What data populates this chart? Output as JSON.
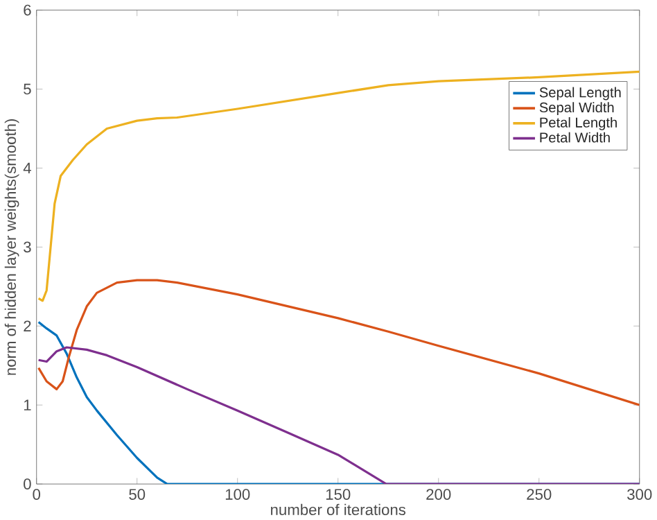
{
  "chart_data": {
    "type": "line",
    "xlabel": "number of iterations",
    "ylabel": "norm of hidden layer weights(smooth)",
    "xlim": [
      0,
      300
    ],
    "ylim": [
      0,
      6
    ],
    "xticks": [
      0,
      50,
      100,
      150,
      200,
      250,
      300
    ],
    "yticks": [
      0,
      1,
      2,
      3,
      4,
      5,
      6
    ],
    "legend": "top right",
    "grid": false,
    "series": [
      {
        "name": "Sepal Length",
        "color": "#0072bd",
        "x": [
          1,
          5,
          10,
          15,
          20,
          25,
          30,
          40,
          50,
          60,
          65,
          100,
          300
        ],
        "values": [
          2.05,
          1.97,
          1.88,
          1.65,
          1.35,
          1.1,
          0.93,
          0.62,
          0.33,
          0.08,
          0,
          0,
          0
        ]
      },
      {
        "name": "Sepal Width",
        "color": "#d95319",
        "x": [
          1,
          5,
          10,
          13,
          16,
          20,
          25,
          30,
          40,
          50,
          60,
          70,
          100,
          150,
          175,
          200,
          250,
          300
        ],
        "values": [
          1.47,
          1.3,
          1.2,
          1.3,
          1.6,
          1.95,
          2.25,
          2.42,
          2.55,
          2.58,
          2.58,
          2.55,
          2.4,
          2.1,
          1.93,
          1.75,
          1.4,
          1.0
        ]
      },
      {
        "name": "Petal Length",
        "color": "#edb120",
        "x": [
          1,
          3,
          5,
          7,
          9,
          12,
          18,
          25,
          35,
          50,
          60,
          70,
          100,
          150,
          175,
          200,
          250,
          300
        ],
        "values": [
          2.35,
          2.32,
          2.45,
          3.0,
          3.55,
          3.9,
          4.1,
          4.3,
          4.5,
          4.6,
          4.63,
          4.64,
          4.75,
          4.95,
          5.05,
          5.1,
          5.15,
          5.22
        ]
      },
      {
        "name": "Petal Width",
        "color": "#7e2f8e",
        "x": [
          1,
          5,
          10,
          15,
          25,
          35,
          50,
          75,
          100,
          125,
          150,
          174,
          300
        ],
        "values": [
          1.57,
          1.55,
          1.68,
          1.73,
          1.7,
          1.63,
          1.48,
          1.2,
          0.93,
          0.65,
          0.37,
          0,
          0
        ]
      }
    ]
  }
}
